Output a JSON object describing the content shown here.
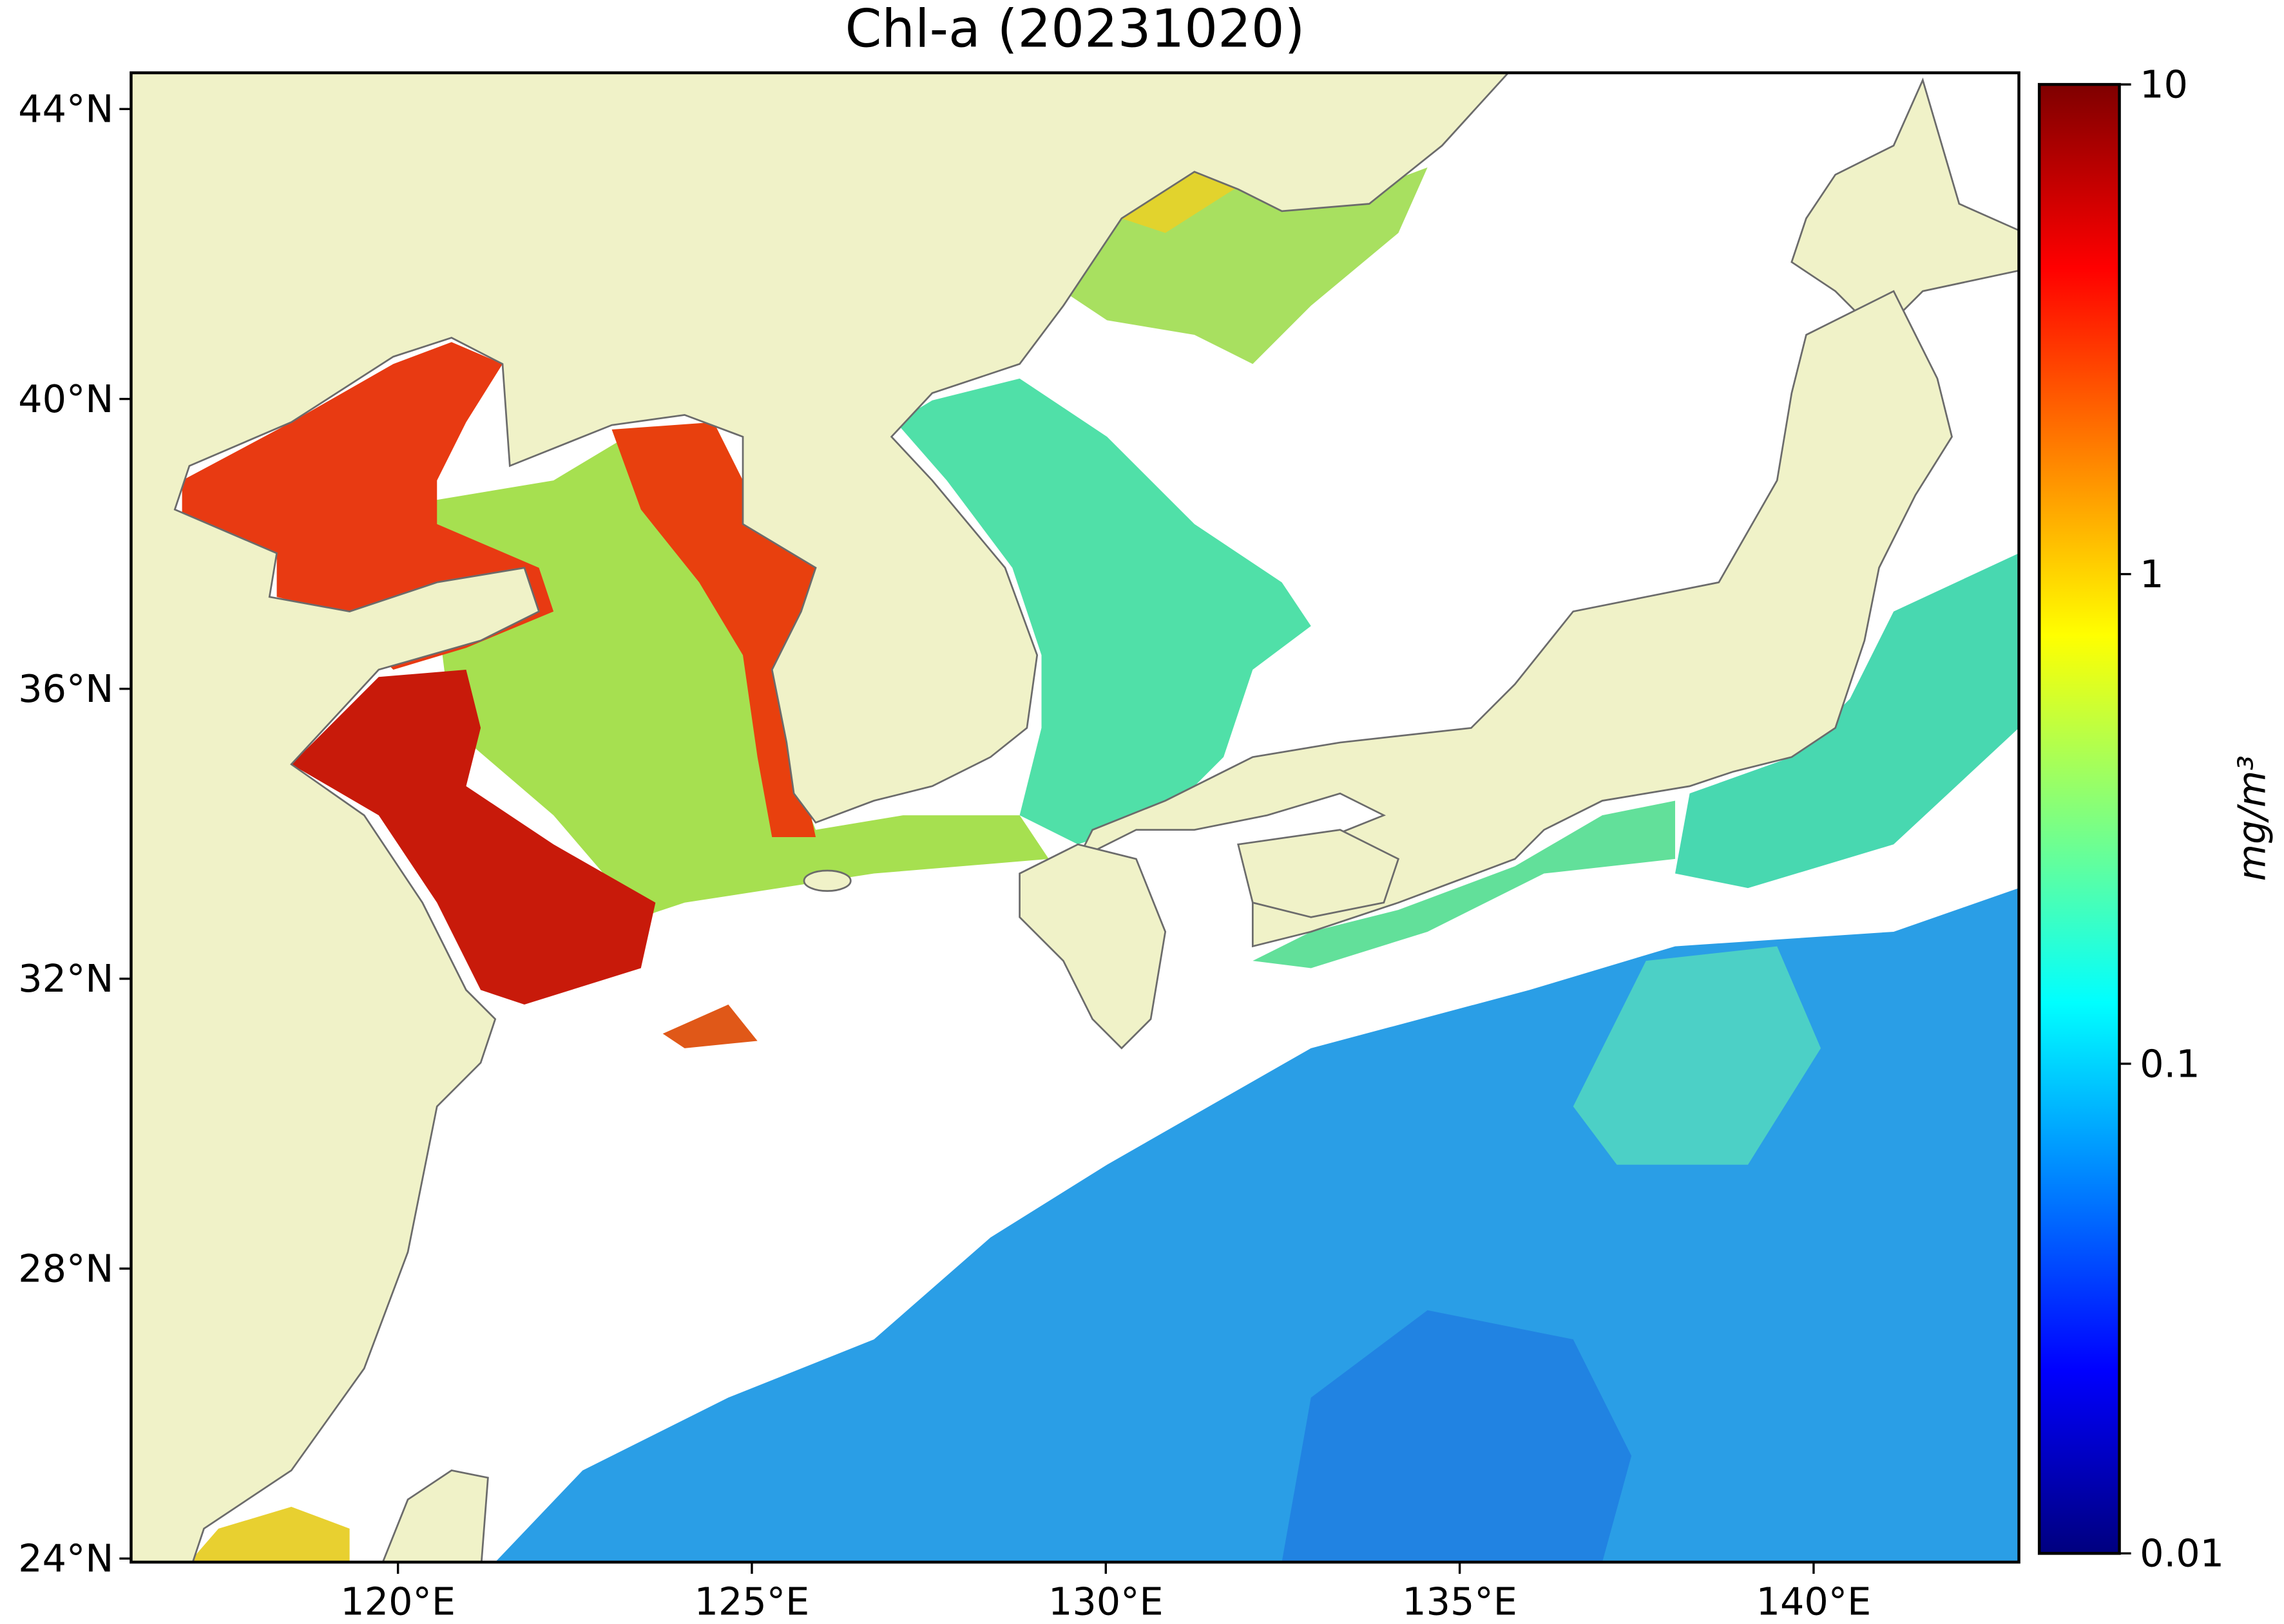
{
  "title": "Chl-a (20231020)",
  "map": {
    "xlim": [
      116.23,
      142.9
    ],
    "ylim": [
      23.95,
      44.5
    ],
    "xticks": [
      {
        "value": 120,
        "label": "120°E"
      },
      {
        "value": 125,
        "label": "125°E"
      },
      {
        "value": 130,
        "label": "130°E"
      },
      {
        "value": 135,
        "label": "135°E"
      },
      {
        "value": 140,
        "label": "140°E"
      }
    ],
    "yticks": [
      {
        "value": 24,
        "label": "24°N"
      },
      {
        "value": 28,
        "label": "28°N"
      },
      {
        "value": 32,
        "label": "32°N"
      },
      {
        "value": 36,
        "label": "36°N"
      },
      {
        "value": 40,
        "label": "40°N"
      },
      {
        "value": 44,
        "label": "44°N"
      }
    ]
  },
  "colorbar": {
    "label": "mg/m³",
    "scale": "log",
    "clim": [
      0.01,
      10
    ],
    "ticks": [
      0.01,
      0.1,
      1,
      10
    ],
    "colormap": "jet"
  }
}
